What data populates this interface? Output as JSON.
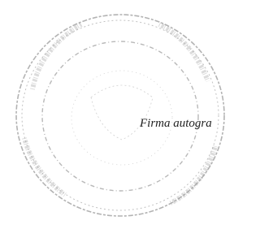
{
  "stamp": {
    "caption": "Firma autogra"
  }
}
